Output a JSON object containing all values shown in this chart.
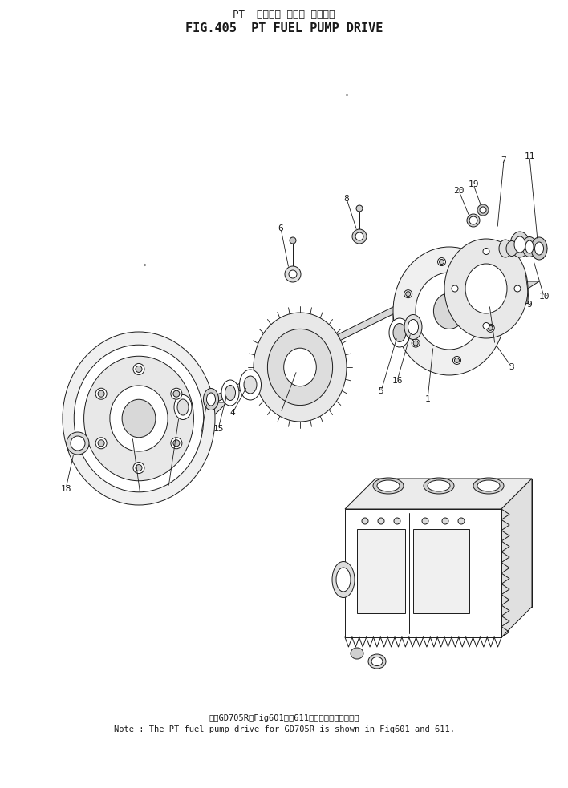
{
  "title_jp": "PT  フェエル ポンプ ドライブ",
  "title_en": "FIG.405  PT FUEL PUMP DRIVE",
  "note_jp": "は、GD705RはFig601及び611に記載してあります。",
  "note_en": "Note : The PT fuel pump drive for GD705R is shown in Fig601 and 611.",
  "bg_color": "#ffffff",
  "line_color": "#1a1a1a",
  "lw": 0.7
}
